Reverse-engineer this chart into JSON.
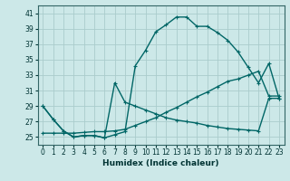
{
  "xlabel": "Humidex (Indice chaleur)",
  "bg_color": "#cce8e8",
  "grid_color": "#aacccc",
  "line_color": "#006666",
  "xlim": [
    -0.5,
    23.5
  ],
  "ylim": [
    24.0,
    42.0
  ],
  "yticks": [
    25,
    27,
    29,
    31,
    33,
    35,
    37,
    39,
    41
  ],
  "xticks": [
    0,
    1,
    2,
    3,
    4,
    5,
    6,
    7,
    8,
    9,
    10,
    11,
    12,
    13,
    14,
    15,
    16,
    17,
    18,
    19,
    20,
    21,
    22,
    23
  ],
  "curve1_x": [
    0,
    1,
    2,
    3,
    4,
    5,
    6,
    7,
    8,
    9,
    10,
    11,
    12,
    13,
    14,
    15,
    16,
    17,
    18,
    19,
    20,
    21,
    22,
    23
  ],
  "curve1_y": [
    29.0,
    27.3,
    25.8,
    25.0,
    25.2,
    25.2,
    24.9,
    25.3,
    25.7,
    34.2,
    36.2,
    38.6,
    39.5,
    40.5,
    40.5,
    39.3,
    39.3,
    38.5,
    37.5,
    36.0,
    34.0,
    32.0,
    34.5,
    30.0
  ],
  "curve2_x": [
    0,
    1,
    2,
    3,
    4,
    5,
    6,
    7,
    8,
    9,
    10,
    11,
    12,
    13,
    14,
    15,
    16,
    17,
    18,
    19,
    20,
    21,
    22,
    23
  ],
  "curve2_y": [
    29.0,
    27.3,
    25.8,
    25.0,
    25.2,
    25.2,
    24.9,
    32.0,
    29.5,
    29.0,
    28.5,
    28.0,
    27.5,
    27.2,
    27.0,
    26.8,
    26.5,
    26.3,
    26.1,
    26.0,
    25.9,
    25.8,
    30.0,
    30.0
  ],
  "curve3_x": [
    0,
    1,
    2,
    3,
    4,
    5,
    6,
    7,
    8,
    9,
    10,
    11,
    12,
    13,
    14,
    15,
    16,
    17,
    18,
    19,
    20,
    21,
    22,
    23
  ],
  "curve3_y": [
    25.5,
    25.5,
    25.5,
    25.5,
    25.6,
    25.7,
    25.7,
    25.8,
    26.0,
    26.5,
    27.0,
    27.5,
    28.2,
    28.8,
    29.5,
    30.2,
    30.8,
    31.5,
    32.2,
    32.5,
    33.0,
    33.5,
    30.3,
    30.3
  ]
}
